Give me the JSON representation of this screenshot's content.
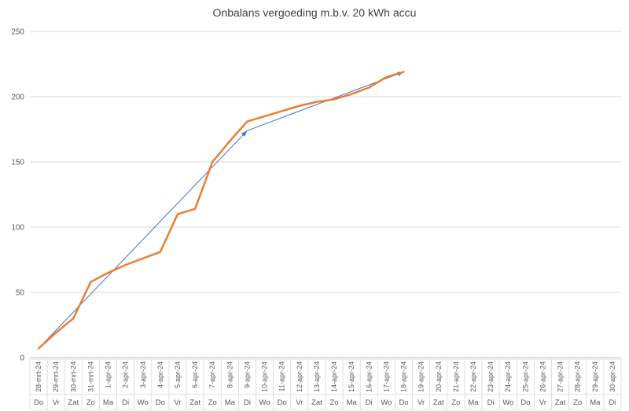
{
  "title": "Onbalans vergoeding m.b.v. 20 kWh accu",
  "chart_data": {
    "type": "line",
    "title": "Onbalans vergoeding m.b.v. 20 kWh accu",
    "xlabel": "",
    "ylabel": "",
    "ylim": [
      0,
      250
    ],
    "yticks": [
      0,
      50,
      100,
      150,
      200,
      250
    ],
    "grid": true,
    "legend": "none",
    "grid_color": "#D9D9D9",
    "axis_color": "#BFBFBF",
    "text_color": "#595959",
    "label_border_color": "#D9D9D9",
    "categories": [
      "28-mrt-24",
      "29-mrt-24",
      "30-mrt-24",
      "31-mrt-24",
      "1-apr-24",
      "2-apr-24",
      "3-apr-24",
      "4-apr-24",
      "5-apr-24",
      "6-apr-24",
      "7-apr-24",
      "8-apr-24",
      "9-apr-24",
      "10-apr-24",
      "11-apr-24",
      "12-apr-24",
      "13-apr-24",
      "14-apr-24",
      "15-apr-24",
      "16-apr-24",
      "17-apr-24",
      "18-apr-24",
      "19-apr-24",
      "20-apr-24",
      "21-apr-24",
      "22-apr-24",
      "23-apr-24",
      "24-apr-24",
      "25-apr-24",
      "26-apr-24",
      "27-apr-24",
      "28-apr-24",
      "29-apr-24",
      "30-apr-24"
    ],
    "category_days": [
      "Do",
      "Vr",
      "Zat",
      "Zo",
      "Ma",
      "Di",
      "Wo",
      "Do",
      "Vr",
      "Zat",
      "Zo",
      "Ma",
      "Di",
      "Wo",
      "Do",
      "Vr",
      "Zat",
      "Zo",
      "Ma",
      "Di",
      "Wo",
      "Do",
      "Vr",
      "Zat",
      "Zo",
      "Ma",
      "Di",
      "Wo",
      "Do",
      "Vr",
      "Zat",
      "Zo",
      "Ma",
      "Di"
    ],
    "series": [
      {
        "id": "orange-cumulative-line",
        "color": "#ED7D31",
        "width": 2.5,
        "values": [
          7,
          19,
          30,
          58,
          65,
          71,
          76,
          81,
          110,
          114,
          150,
          166,
          181,
          185,
          189,
          193,
          196,
          198,
          202,
          207,
          215,
          219,
          null,
          null,
          null,
          null,
          null,
          null,
          null,
          null,
          null,
          null,
          null,
          null
        ]
      },
      {
        "id": "blue-trend-arrows",
        "color": "#4472C4",
        "width": 1,
        "type": "arrow-segments",
        "segments": [
          {
            "from": {
              "cat": "28-mrt-24",
              "value": 7
            },
            "to": {
              "cat": "9-apr-24",
              "value": 174
            }
          },
          {
            "from": {
              "cat": "9-apr-24",
              "value": 174
            },
            "to": {
              "cat": "18-apr-24",
              "value": 219
            }
          }
        ]
      }
    ]
  }
}
